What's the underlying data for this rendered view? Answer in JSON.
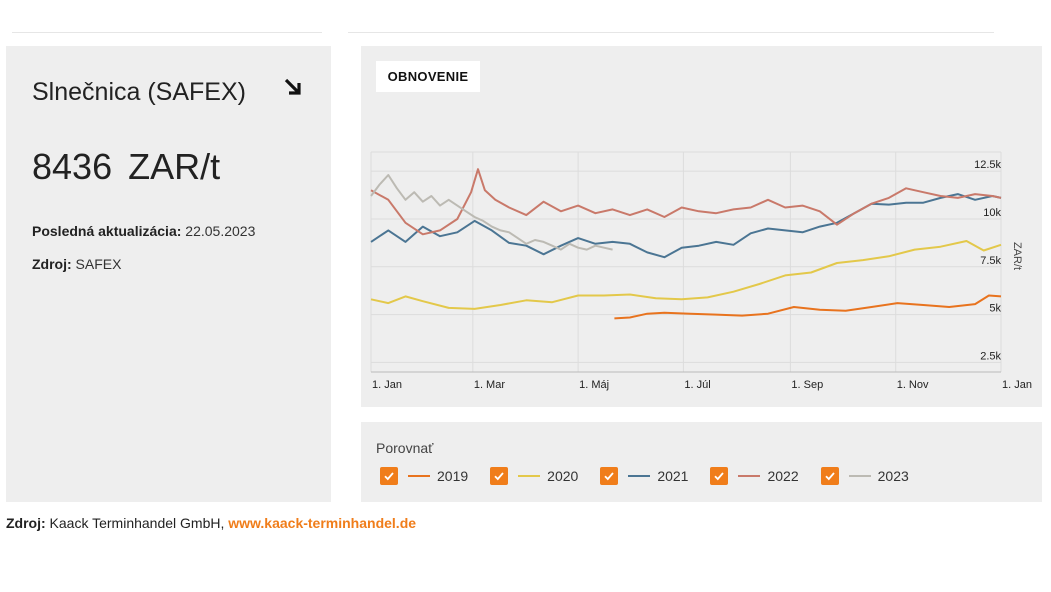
{
  "left": {
    "title": "Slnečnica (SAFEX)",
    "trend_icon": "arrow-down-right-icon",
    "price_value": "8436",
    "price_unit": "ZAR/t",
    "last_update_label": "Posledná aktualizácia:",
    "last_update_value": "22.05.2023",
    "source_label": "Zdroj:",
    "source_value": "SAFEX"
  },
  "refresh_label": "OBNOVENIE",
  "compare_label": "Porovnať",
  "footer": {
    "label": "Zdroj:",
    "text": "Kaack Terminhandel GmbH,",
    "link": "www.kaack-terminhandel.de"
  },
  "colors": {
    "accent": "#f07d1a",
    "2019": "#e8731e",
    "2020": "#e3c84a",
    "2021": "#4b7593",
    "2022": "#c9796a",
    "2023": "#bcbab3"
  },
  "chart_data": {
    "type": "line",
    "title": "",
    "xlabel": "",
    "ylabel": "ZAR/t",
    "x_ticks": [
      "1. Jan",
      "1. Mar",
      "1. Máj",
      "1. Júl",
      "1. Sep",
      "1. Nov",
      "1. Jan"
    ],
    "x_tick_days": [
      0,
      59,
      120,
      181,
      243,
      304,
      365
    ],
    "y_ticks": [
      "2.5k",
      "5k",
      "7.5k",
      "10k",
      "12.5k"
    ],
    "y_tick_values": [
      2500,
      5000,
      7500,
      10000,
      12500
    ],
    "ylim": [
      2000,
      13500
    ],
    "grid": true,
    "legend_position": "bottom",
    "series": [
      {
        "name": "2019",
        "x": [
          141,
          150,
          160,
          170,
          185,
          200,
          215,
          230,
          245,
          260,
          275,
          290,
          305,
          320,
          335,
          350,
          358,
          365
        ],
        "y": [
          4800,
          4850,
          5050,
          5100,
          5050,
          5000,
          4950,
          5050,
          5400,
          5250,
          5200,
          5400,
          5600,
          5500,
          5400,
          5550,
          6000,
          5950
        ]
      },
      {
        "name": "2020",
        "x": [
          0,
          10,
          20,
          30,
          45,
          60,
          75,
          90,
          105,
          120,
          135,
          150,
          165,
          180,
          195,
          210,
          225,
          240,
          255,
          270,
          285,
          300,
          315,
          330,
          345,
          355,
          365
        ],
        "y": [
          5800,
          5600,
          5950,
          5700,
          5350,
          5300,
          5500,
          5750,
          5650,
          6000,
          6000,
          6050,
          5850,
          5800,
          5900,
          6200,
          6600,
          7050,
          7200,
          7700,
          7850,
          8050,
          8400,
          8550,
          8850,
          8350,
          8650
        ]
      },
      {
        "name": "2021",
        "x": [
          0,
          10,
          20,
          30,
          40,
          50,
          60,
          70,
          80,
          90,
          100,
          110,
          120,
          130,
          140,
          150,
          160,
          170,
          180,
          190,
          200,
          210,
          220,
          230,
          240,
          250,
          260,
          270,
          280,
          290,
          300,
          310,
          320,
          330,
          340,
          350,
          360,
          365
        ],
        "y": [
          8800,
          9400,
          8800,
          9600,
          9100,
          9300,
          9900,
          9400,
          8750,
          8600,
          8150,
          8600,
          9000,
          8700,
          8800,
          8700,
          8250,
          8000,
          8500,
          8600,
          8800,
          8650,
          9250,
          9500,
          9400,
          9300,
          9600,
          9800,
          10300,
          10800,
          10750,
          10850,
          10850,
          11100,
          11300,
          11000,
          11200,
          11100
        ]
      },
      {
        "name": "2022",
        "x": [
          0,
          10,
          20,
          30,
          40,
          50,
          58,
          62,
          66,
          72,
          80,
          90,
          100,
          110,
          120,
          130,
          140,
          150,
          160,
          170,
          180,
          190,
          200,
          210,
          220,
          230,
          240,
          250,
          260,
          270,
          280,
          290,
          300,
          310,
          320,
          330,
          340,
          350,
          360,
          365
        ],
        "y": [
          11500,
          11000,
          9800,
          9200,
          9400,
          10000,
          11400,
          12600,
          11500,
          11000,
          10600,
          10200,
          10900,
          10400,
          10700,
          10300,
          10500,
          10200,
          10500,
          10100,
          10600,
          10400,
          10300,
          10500,
          10600,
          11000,
          10600,
          10700,
          10400,
          9700,
          10300,
          10800,
          11100,
          11600,
          11400,
          11200,
          11100,
          11300,
          11200,
          11100
        ]
      },
      {
        "name": "2023",
        "x": [
          0,
          5,
          10,
          15,
          20,
          25,
          30,
          35,
          40,
          45,
          50,
          55,
          60,
          65,
          70,
          75,
          80,
          85,
          90,
          95,
          100,
          105,
          110,
          115,
          120,
          125,
          130,
          135,
          140
        ],
        "y": [
          11200,
          11800,
          12300,
          11600,
          11000,
          11400,
          10900,
          11200,
          10700,
          11000,
          10700,
          10400,
          10100,
          9900,
          9600,
          9400,
          9300,
          9000,
          8700,
          8900,
          8800,
          8600,
          8400,
          8700,
          8500,
          8400,
          8600,
          8500,
          8400
        ]
      }
    ]
  }
}
